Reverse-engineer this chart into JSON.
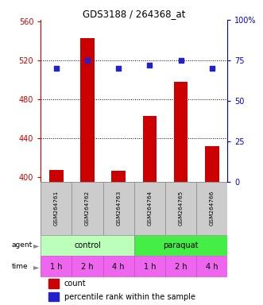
{
  "title": "GDS3188 / 264368_at",
  "samples": [
    "GSM264761",
    "GSM264762",
    "GSM264763",
    "GSM264764",
    "GSM264765",
    "GSM264766"
  ],
  "counts": [
    407,
    543,
    406,
    463,
    498,
    432
  ],
  "percentile_ranks": [
    70,
    75,
    70,
    72,
    75,
    70
  ],
  "ylim_left": [
    395,
    562
  ],
  "ylim_right": [
    0,
    100
  ],
  "yticks_left": [
    400,
    440,
    480,
    520,
    560
  ],
  "yticks_right": [
    0,
    25,
    50,
    75,
    100
  ],
  "ytick_labels_right": [
    "0",
    "25",
    "50",
    "75",
    "100%"
  ],
  "bar_color": "#CC0000",
  "dot_color": "#2222CC",
  "agent_control_color": "#BBFFBB",
  "agent_paraquat_color": "#44EE44",
  "time_color": "#EE66EE",
  "label_color_left": "#CC0000",
  "label_color_right": "#0000CC",
  "sample_box_color": "#CCCCCC",
  "legend_count_color": "#CC0000",
  "legend_pct_color": "#2222CC",
  "grid_yticks": [
    440,
    480,
    520
  ]
}
